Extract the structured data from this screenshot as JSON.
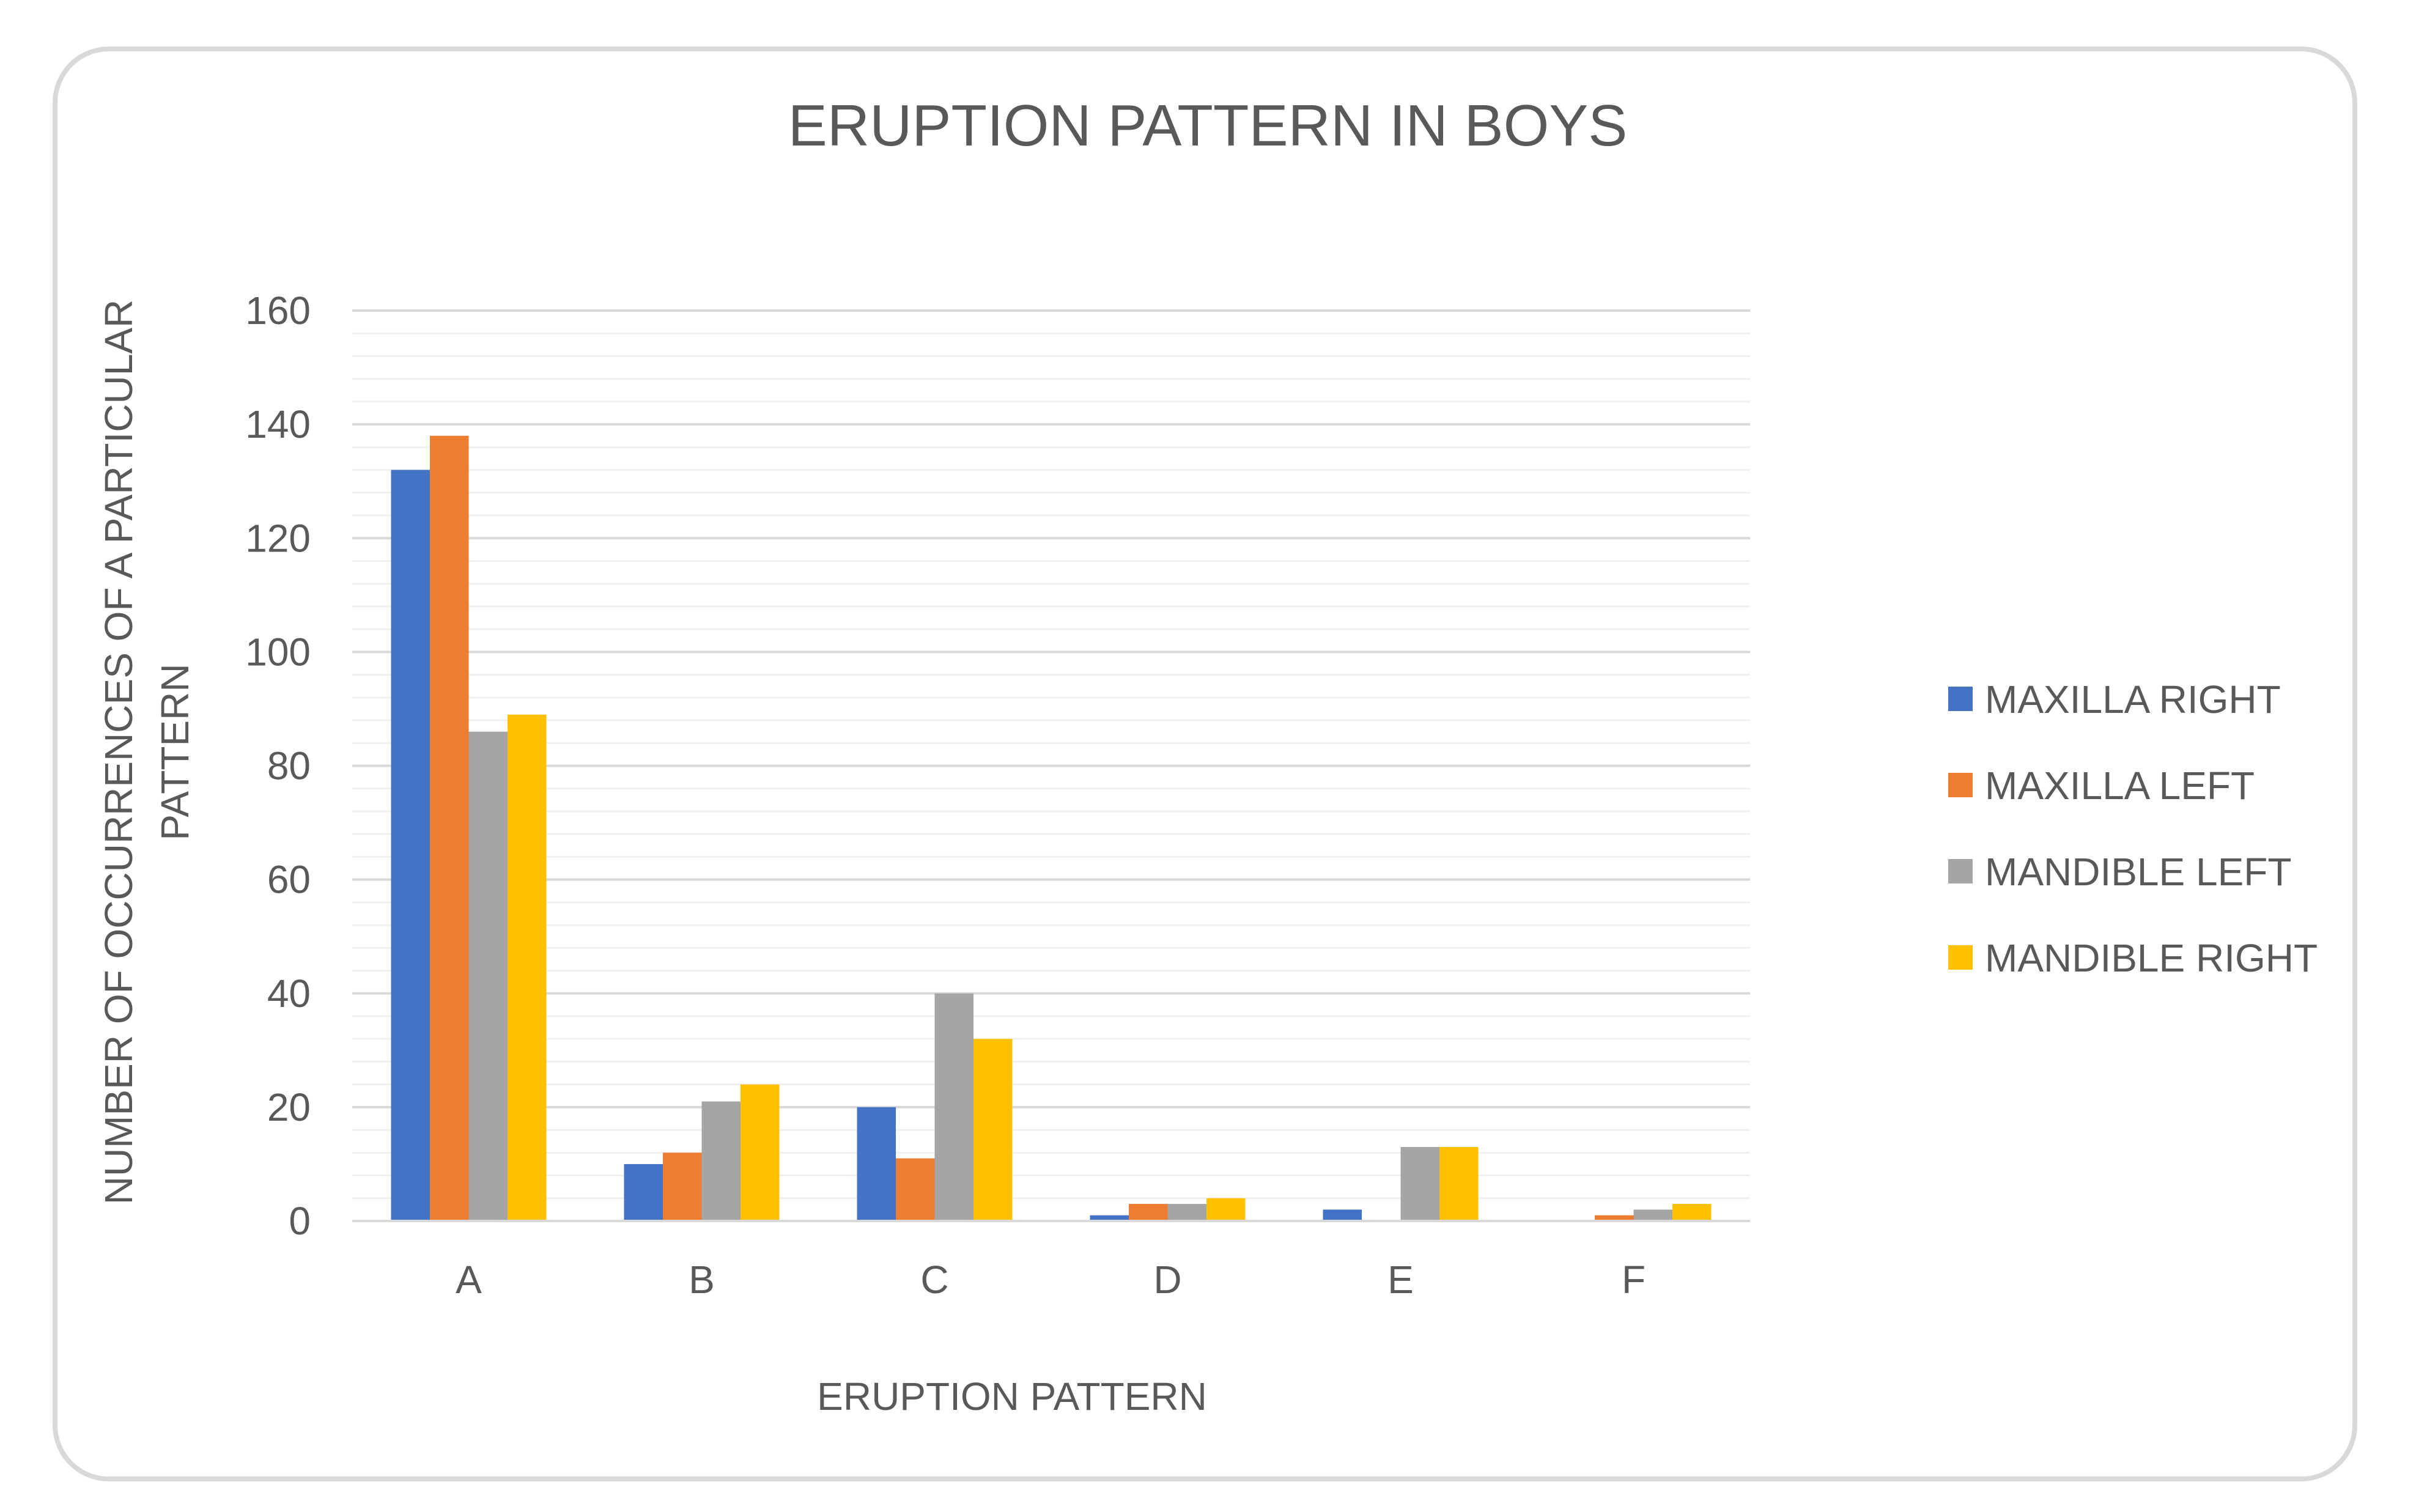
{
  "chart_data": {
    "type": "bar",
    "title": "ERUPTION PATTERN IN BOYS",
    "xlabel": "ERUPTION PATTERN",
    "ylabel_lines": [
      "NUMBER OF OCCURRENCES OF A PARTICULAR",
      "PATTERN"
    ],
    "categories": [
      "A",
      "B",
      "C",
      "D",
      "E",
      "F"
    ],
    "ylim": [
      0,
      160
    ],
    "yticks": [
      0,
      20,
      40,
      60,
      80,
      100,
      120,
      140,
      160
    ],
    "minor_grid_step": 4,
    "grid": true,
    "legend_position": "right",
    "series": [
      {
        "name": "MAXILLA RIGHT",
        "color": "#4472c4",
        "values": [
          132,
          10,
          20,
          1,
          2,
          0
        ]
      },
      {
        "name": "MAXILLA LEFT",
        "color": "#ed7d31",
        "values": [
          138,
          12,
          11,
          3,
          0,
          1
        ]
      },
      {
        "name": "MANDIBLE LEFT",
        "color": "#a5a5a5",
        "values": [
          86,
          21,
          40,
          3,
          13,
          2
        ]
      },
      {
        "name": "MANDIBLE RIGHT",
        "color": "#ffc000",
        "values": [
          89,
          24,
          32,
          4,
          13,
          3
        ]
      }
    ]
  }
}
